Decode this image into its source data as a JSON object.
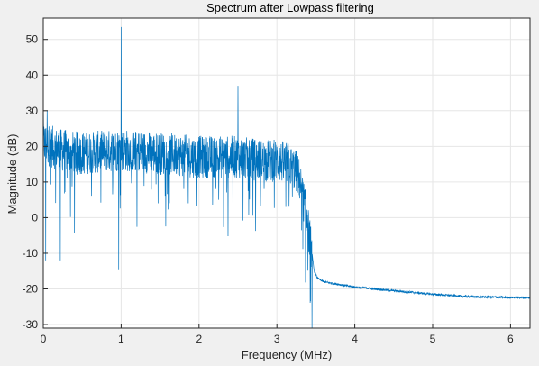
{
  "chart_data": {
    "type": "line",
    "title": "Spectrum after Lowpass filtering",
    "xlabel": "Frequency (MHz)",
    "ylabel": "Magnitude (dB)",
    "xlim": [
      0,
      6.25
    ],
    "ylim": [
      -31,
      56
    ],
    "xticks": [
      0,
      1,
      2,
      3,
      4,
      5,
      6
    ],
    "yticks": [
      -30,
      -20,
      -10,
      0,
      10,
      20,
      30,
      40,
      50
    ],
    "grid": true,
    "legend": "none",
    "series": [
      {
        "color": "#0072bd",
        "baseline": [
          [
            0,
            21
          ],
          [
            0.2,
            19
          ],
          [
            0.5,
            18
          ],
          [
            1.0,
            19
          ],
          [
            1.5,
            18
          ],
          [
            2.0,
            17
          ],
          [
            2.5,
            17
          ],
          [
            2.8,
            16
          ],
          [
            3.0,
            16
          ],
          [
            3.15,
            15
          ],
          [
            3.25,
            13
          ],
          [
            3.3,
            10
          ],
          [
            3.35,
            4
          ],
          [
            3.4,
            -3
          ],
          [
            3.45,
            -10
          ],
          [
            3.48,
            -15
          ],
          [
            3.52,
            -17
          ],
          [
            3.6,
            -18
          ],
          [
            4.0,
            -19.5
          ],
          [
            4.5,
            -20.5
          ],
          [
            5.0,
            -21.5
          ],
          [
            5.5,
            -22.2
          ],
          [
            6.25,
            -22.5
          ]
        ],
        "peaks": [
          [
            0.0,
            34
          ],
          [
            0.05,
            30
          ],
          [
            1.0,
            53.5
          ],
          [
            2.5,
            37
          ],
          [
            0.03,
            -12
          ],
          [
            0.22,
            -12
          ],
          [
            0.97,
            -14.5
          ],
          [
            3.45,
            -31
          ]
        ],
        "noise_db": 6,
        "noise_end_mhz": 3.45
      }
    ]
  }
}
